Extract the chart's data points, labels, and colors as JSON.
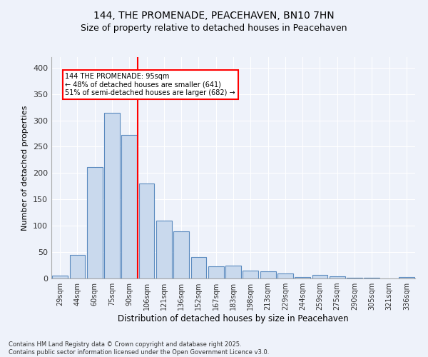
{
  "title1": "144, THE PROMENADE, PEACEHAVEN, BN10 7HN",
  "title2": "Size of property relative to detached houses in Peacehaven",
  "xlabel": "Distribution of detached houses by size in Peacehaven",
  "ylabel": "Number of detached properties",
  "categories": [
    "29sqm",
    "44sqm",
    "60sqm",
    "75sqm",
    "90sqm",
    "106sqm",
    "121sqm",
    "136sqm",
    "152sqm",
    "167sqm",
    "183sqm",
    "198sqm",
    "213sqm",
    "229sqm",
    "244sqm",
    "259sqm",
    "275sqm",
    "290sqm",
    "305sqm",
    "321sqm",
    "336sqm"
  ],
  "values": [
    5,
    45,
    212,
    315,
    272,
    180,
    110,
    90,
    40,
    23,
    25,
    15,
    13,
    10,
    3,
    7,
    4,
    2,
    1,
    0,
    3
  ],
  "bar_color": "#c9d9ed",
  "bar_edge_color": "#5a8abf",
  "vline_label": "144 THE PROMENADE: 95sqm",
  "annotation_line2": "← 48% of detached houses are smaller (641)",
  "annotation_line3": "51% of semi-detached houses are larger (682) →",
  "annotation_box_color": "white",
  "annotation_box_edge": "red",
  "ylim": [
    0,
    420
  ],
  "yticks": [
    0,
    50,
    100,
    150,
    200,
    250,
    300,
    350,
    400
  ],
  "footer1": "Contains HM Land Registry data © Crown copyright and database right 2025.",
  "footer2": "Contains public sector information licensed under the Open Government Licence v3.0.",
  "bg_color": "#eef2fa",
  "plot_bg_color": "#eef2fa",
  "grid_color": "white",
  "title_fontsize": 10,
  "subtitle_fontsize": 9,
  "vline_pos": 4.5
}
